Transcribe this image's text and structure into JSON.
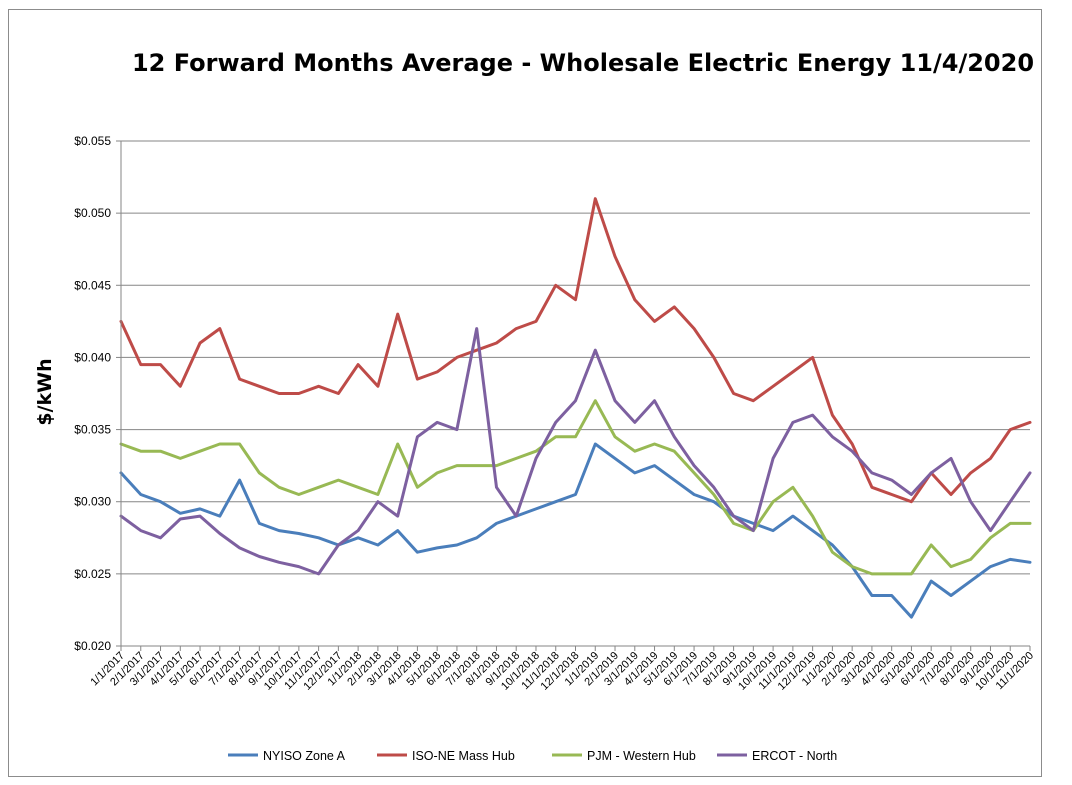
{
  "chart_data": {
    "type": "line",
    "title": "12 Forward Months Average - Wholesale Electric Energy 11/4/2020",
    "ylabel": "$/kWh",
    "xlabel": "",
    "ylim": [
      0.02,
      0.055
    ],
    "yticks": [
      0.02,
      0.025,
      0.03,
      0.035,
      0.04,
      0.045,
      0.05,
      0.055
    ],
    "ytick_labels": [
      "$0.020",
      "$0.025",
      "$0.030",
      "$0.035",
      "$0.040",
      "$0.045",
      "$0.050",
      "$0.055"
    ],
    "grid": true,
    "legend_position": "bottom",
    "x": [
      "1/1/2017",
      "2/1/2017",
      "3/1/2017",
      "4/1/2017",
      "5/1/2017",
      "6/1/2017",
      "7/1/2017",
      "8/1/2017",
      "9/1/2017",
      "10/1/2017",
      "11/1/2017",
      "12/1/2017",
      "1/1/2018",
      "2/1/2018",
      "3/1/2018",
      "4/1/2018",
      "5/1/2018",
      "6/1/2018",
      "7/1/2018",
      "8/1/2018",
      "9/1/2018",
      "10/1/2018",
      "11/1/2018",
      "12/1/2018",
      "1/1/2019",
      "2/1/2019",
      "3/1/2019",
      "4/1/2019",
      "5/1/2019",
      "6/1/2019",
      "7/1/2019",
      "8/1/2019",
      "9/1/2019",
      "10/1/2019",
      "11/1/2019",
      "12/1/2019",
      "1/1/2020",
      "2/1/2020",
      "3/1/2020",
      "4/1/2020",
      "5/1/2020",
      "6/1/2020",
      "7/1/2020",
      "8/1/2020",
      "9/1/2020",
      "10/1/2020",
      "11/1/2020"
    ],
    "series": [
      {
        "name": "NYISO Zone A",
        "color": "#4a7ebb",
        "values": [
          0.032,
          0.0305,
          0.03,
          0.0292,
          0.0295,
          0.029,
          0.0315,
          0.0285,
          0.028,
          0.0278,
          0.0275,
          0.027,
          0.0275,
          0.027,
          0.028,
          0.0265,
          0.0268,
          0.027,
          0.0275,
          0.0285,
          0.029,
          0.0295,
          0.03,
          0.0305,
          0.034,
          0.033,
          0.032,
          0.0325,
          0.0315,
          0.0305,
          0.03,
          0.029,
          0.0285,
          0.028,
          0.029,
          0.028,
          0.027,
          0.0255,
          0.0235,
          0.0235,
          0.022,
          0.0245,
          0.0235,
          0.0245,
          0.0255,
          0.026,
          0.0258
        ]
      },
      {
        "name": "ISO-NE Mass Hub",
        "color": "#be4b48",
        "values": [
          0.0425,
          0.0395,
          0.0395,
          0.038,
          0.041,
          0.042,
          0.0385,
          0.038,
          0.0375,
          0.0375,
          0.038,
          0.0375,
          0.0395,
          0.038,
          0.043,
          0.0385,
          0.039,
          0.04,
          0.0405,
          0.041,
          0.042,
          0.0425,
          0.045,
          0.044,
          0.051,
          0.047,
          0.044,
          0.0425,
          0.0435,
          0.042,
          0.04,
          0.0375,
          0.037,
          0.038,
          0.039,
          0.04,
          0.036,
          0.034,
          0.031,
          0.0305,
          0.03,
          0.032,
          0.0305,
          0.032,
          0.033,
          0.035,
          0.0355
        ]
      },
      {
        "name": "PJM - Western Hub",
        "color": "#98b954",
        "values": [
          0.034,
          0.0335,
          0.0335,
          0.033,
          0.0335,
          0.034,
          0.034,
          0.032,
          0.031,
          0.0305,
          0.031,
          0.0315,
          0.031,
          0.0305,
          0.034,
          0.031,
          0.032,
          0.0325,
          0.0325,
          0.0325,
          0.033,
          0.0335,
          0.0345,
          0.0345,
          0.037,
          0.0345,
          0.0335,
          0.034,
          0.0335,
          0.032,
          0.0305,
          0.0285,
          0.028,
          0.03,
          0.031,
          0.029,
          0.0265,
          0.0255,
          0.025,
          0.025,
          0.025,
          0.027,
          0.0255,
          0.026,
          0.0275,
          0.0285,
          0.0285
        ]
      },
      {
        "name": "ERCOT - North",
        "color": "#7d60a0",
        "values": [
          0.029,
          0.028,
          0.0275,
          0.0288,
          0.029,
          0.0278,
          0.0268,
          0.0262,
          0.0258,
          0.0255,
          0.025,
          0.027,
          0.028,
          0.03,
          0.029,
          0.0345,
          0.0355,
          0.035,
          0.042,
          0.031,
          0.029,
          0.033,
          0.0355,
          0.037,
          0.0405,
          0.037,
          0.0355,
          0.037,
          0.0345,
          0.0325,
          0.031,
          0.029,
          0.028,
          0.033,
          0.0355,
          0.036,
          0.0345,
          0.0335,
          0.032,
          0.0315,
          0.0305,
          0.032,
          0.033,
          0.03,
          0.028,
          0.03,
          0.032
        ]
      }
    ]
  }
}
